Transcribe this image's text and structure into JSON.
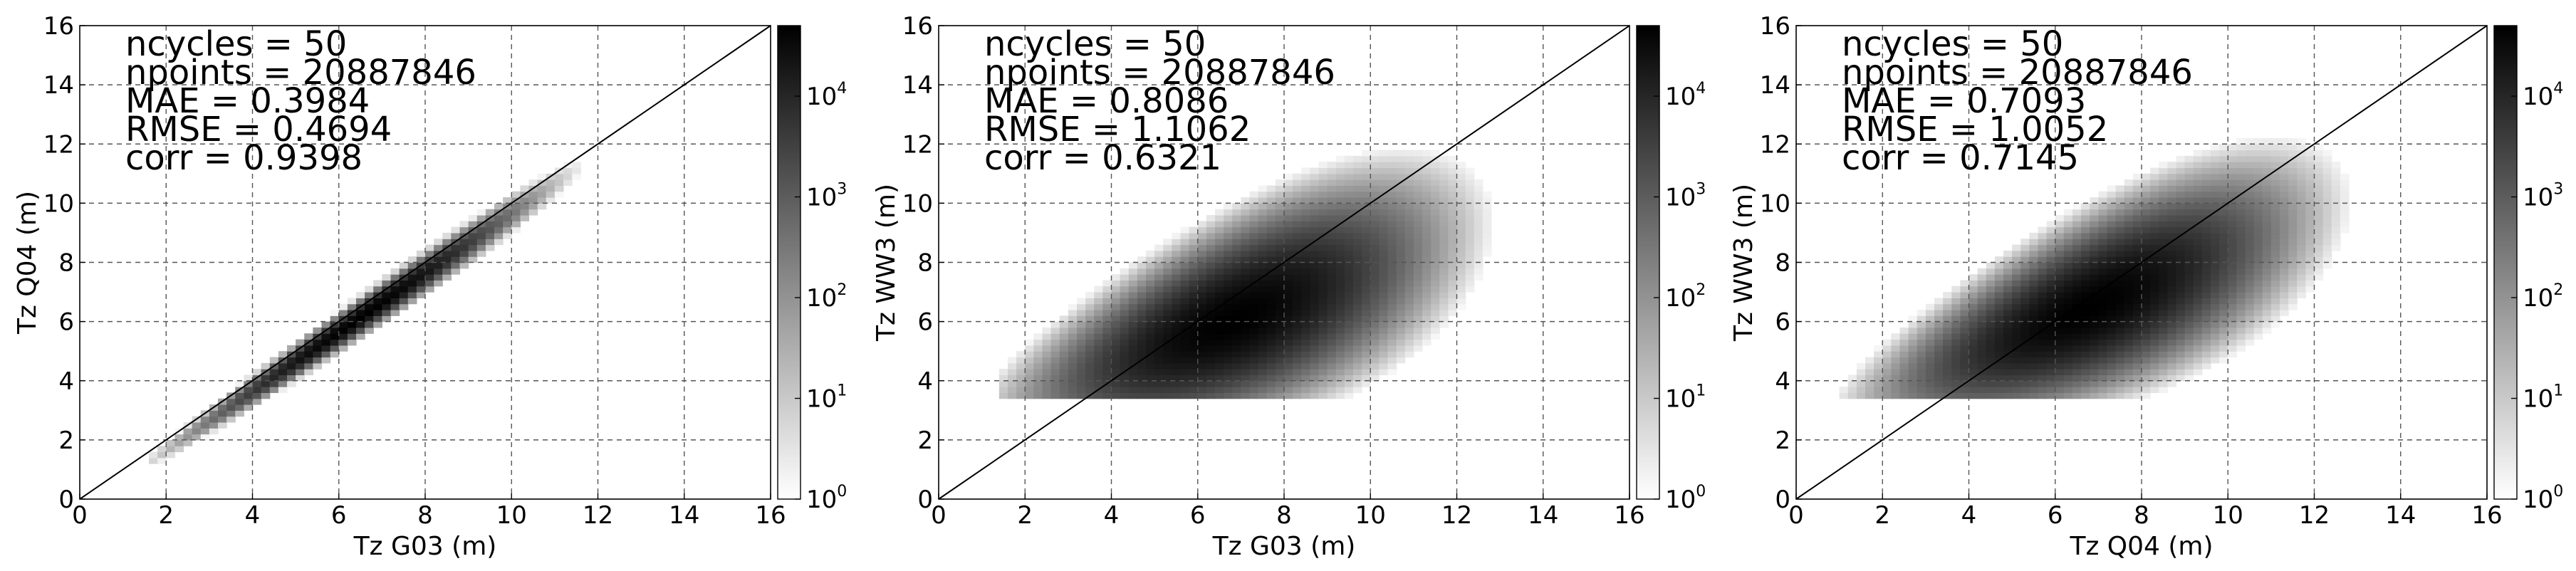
{
  "chart_data": [
    {
      "type": "heatmap",
      "xlabel": "Tz G03 (m)",
      "ylabel": "Tz Q04 (m)",
      "xlim": [
        0,
        16
      ],
      "ylim": [
        0,
        16
      ],
      "ticks": [
        0,
        2,
        4,
        6,
        8,
        10,
        12,
        14,
        16
      ],
      "grid": true,
      "scale": "log",
      "identity_line": true,
      "stats": [
        "ncycles = 50",
        "npoints = 20887846",
        "MAE = 0.3984",
        "RMSE = 0.4694",
        "corr = 0.9398"
      ],
      "colorbar": {
        "ticks": [
          "10",
          "10",
          "10",
          "10",
          "10"
        ],
        "exponents": [
          "0",
          "1",
          "2",
          "3",
          "4"
        ],
        "range_log10": [
          0,
          4.7
        ]
      },
      "density": {
        "mean_x": 6.5,
        "spread_x": 1.8,
        "slope": 1.0,
        "intercept": -0.35,
        "spread_y": 0.25,
        "floor_x": 1.5,
        "floor_y": 1.2,
        "peak_log10": 4.7
      }
    },
    {
      "type": "heatmap",
      "xlabel": "Tz G03 (m)",
      "ylabel": "Tz WW3 (m)",
      "xlim": [
        0,
        16
      ],
      "ylim": [
        0,
        16
      ],
      "ticks": [
        0,
        2,
        4,
        6,
        8,
        10,
        12,
        14,
        16
      ],
      "grid": true,
      "scale": "log",
      "identity_line": true,
      "stats": [
        "ncycles = 50",
        "npoints = 20887846",
        "MAE = 0.8086",
        "RMSE = 1.1062",
        "corr = 0.6321"
      ],
      "colorbar": {
        "ticks": [
          "10",
          "10",
          "10",
          "10",
          "10"
        ],
        "exponents": [
          "0",
          "1",
          "2",
          "3",
          "4"
        ],
        "range_log10": [
          0,
          4.7
        ]
      },
      "density": {
        "mean_x": 6.8,
        "spread_x": 2.1,
        "slope": 0.55,
        "intercept": 2.3,
        "spread_y": 1.25,
        "floor_x": 1.4,
        "floor_y": 3.4,
        "peak_log10": 4.7
      }
    },
    {
      "type": "heatmap",
      "xlabel": "Tz Q04 (m)",
      "ylabel": "Tz WW3 (m)",
      "xlim": [
        0,
        16
      ],
      "ylim": [
        0,
        16
      ],
      "ticks": [
        0,
        2,
        4,
        6,
        8,
        10,
        12,
        14,
        16
      ],
      "grid": true,
      "scale": "log",
      "identity_line": true,
      "stats": [
        "ncycles = 50",
        "npoints = 20887846",
        "MAE = 0.7093",
        "RMSE = 1.0052",
        "corr = 0.7145"
      ],
      "colorbar": {
        "ticks": [
          "10",
          "10",
          "10",
          "10",
          "10"
        ],
        "exponents": [
          "0",
          "1",
          "2",
          "3",
          "4"
        ],
        "range_log10": [
          0,
          4.7
        ]
      },
      "density": {
        "mean_x": 6.8,
        "spread_x": 2.1,
        "slope": 0.6,
        "intercept": 2.4,
        "spread_y": 1.15,
        "floor_x": 1.0,
        "floor_y": 3.4,
        "peak_log10": 4.7
      }
    }
  ]
}
